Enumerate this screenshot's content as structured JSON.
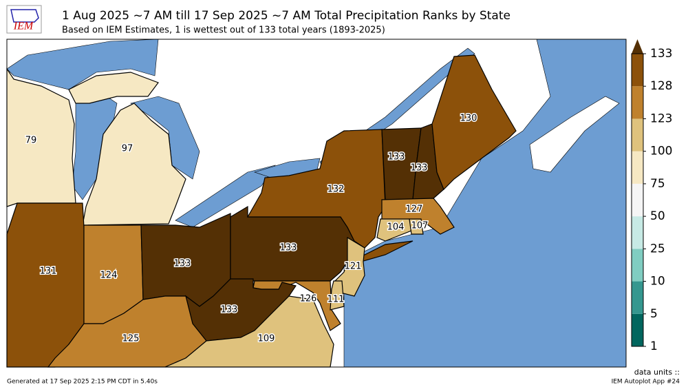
{
  "header": {
    "logo": "IEM",
    "title": "1 Aug 2025 ~7 AM till 17 Sep 2025 ~7 AM Total Precipitation Ranks by State",
    "subtitle": "Based on IEM Estimates, 1 is wettest out of 133 total years (1893-2025)"
  },
  "regions": [
    {
      "value": 79
    },
    {
      "value": 97
    },
    {
      "value": 131
    },
    {
      "value": 124
    },
    {
      "value": 133
    },
    {
      "value": 133
    },
    {
      "value": 132
    },
    {
      "value": 133
    },
    {
      "value": 133
    },
    {
      "value": 130
    },
    {
      "value": 127
    },
    {
      "value": 104
    },
    {
      "value": 107
    },
    {
      "value": 121
    },
    {
      "value": 126
    },
    {
      "value": 111
    },
    {
      "value": 133
    },
    {
      "value": 125
    },
    {
      "value": 109
    }
  ],
  "colorbar": {
    "levels": [
      1,
      5,
      10,
      25,
      50,
      75,
      100,
      123,
      128,
      133
    ],
    "colors": [
      "#01665e",
      "#35978f",
      "#80cdc1",
      "#c7eae5",
      "#f5f5f5",
      "#f6e8c3",
      "#dfc27d",
      "#bf812d",
      "#8c510a"
    ],
    "over_color": "#543005",
    "units": "data units ::"
  },
  "footer": {
    "generated": "Generated at 17 Sep 2025 2:15 PM CDT in 5.40s",
    "app": "IEM Autoplot App #24"
  }
}
